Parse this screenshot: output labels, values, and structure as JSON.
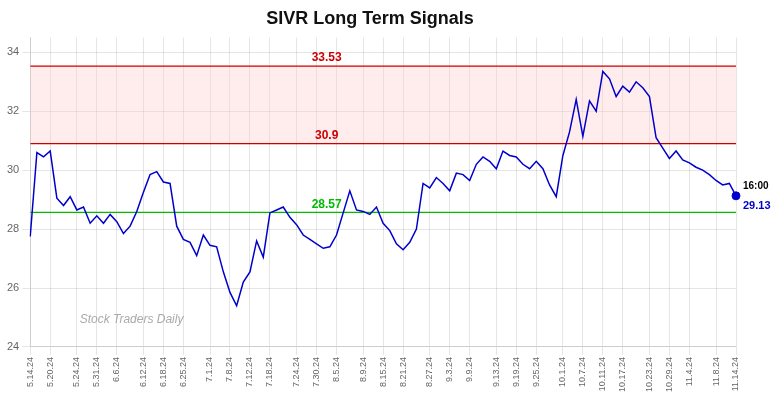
{
  "chart_data": {
    "type": "line",
    "title": "SIVR Long Term Signals",
    "watermark": "Stock Traders Daily",
    "color": "#0000cc",
    "categories": [
      "5.14.24",
      null,
      null,
      "5.20.24",
      null,
      null,
      null,
      "5.24.24",
      null,
      null,
      "5.31.24",
      null,
      null,
      "6.6.24",
      null,
      null,
      null,
      "6.12.24",
      null,
      null,
      "6.18.24",
      null,
      null,
      "6.25.24",
      null,
      null,
      null,
      "7.1.24",
      null,
      null,
      "7.8.24",
      null,
      null,
      "7.12.24",
      null,
      null,
      "7.18.24",
      null,
      null,
      null,
      "7.24.24",
      null,
      null,
      "7.30.24",
      null,
      null,
      "8.5.24",
      null,
      null,
      null,
      "8.9.24",
      null,
      null,
      "8.15.24",
      null,
      null,
      "8.21.24",
      null,
      null,
      null,
      "8.27.24",
      null,
      null,
      "9.3.24",
      null,
      null,
      "9.9.24",
      null,
      null,
      null,
      "9.13.24",
      null,
      null,
      "9.19.24",
      null,
      null,
      "9.25.24",
      null,
      null,
      null,
      "10.1.24",
      null,
      null,
      "10.7.24",
      null,
      null,
      "10.11.24",
      null,
      null,
      "10.17.24",
      null,
      null,
      null,
      "10.23.24",
      null,
      null,
      "10.29.24",
      null,
      null,
      "11.4.24",
      null,
      null,
      null,
      "11.8.24",
      null,
      null,
      "11.14.24"
    ],
    "values": [
      27.75,
      30.6,
      30.45,
      30.65,
      29.05,
      28.8,
      29.1,
      28.65,
      28.75,
      28.2,
      28.45,
      28.2,
      28.5,
      28.25,
      27.85,
      28.1,
      28.6,
      29.25,
      29.85,
      29.95,
      29.6,
      29.55,
      28.1,
      27.65,
      27.55,
      27.1,
      27.8,
      27.45,
      27.4,
      26.55,
      25.85,
      25.4,
      26.2,
      26.55,
      27.6,
      27.05,
      28.55,
      28.65,
      28.75,
      28.4,
      28.15,
      27.8,
      27.65,
      27.5,
      27.35,
      27.4,
      27.8,
      28.55,
      29.3,
      28.65,
      28.6,
      28.5,
      28.75,
      28.2,
      27.95,
      27.5,
      27.3,
      27.55,
      28.0,
      29.55,
      29.4,
      29.75,
      29.55,
      29.3,
      29.9,
      29.85,
      29.65,
      30.2,
      30.45,
      30.3,
      30.05,
      30.65,
      30.5,
      30.45,
      30.2,
      30.05,
      30.3,
      30.05,
      29.5,
      29.1,
      30.5,
      31.3,
      32.4,
      31.15,
      32.35,
      32.0,
      33.35,
      33.1,
      32.5,
      32.85,
      32.65,
      33.0,
      32.8,
      32.5,
      31.1,
      30.75,
      30.4,
      30.65,
      30.35,
      30.25,
      30.1,
      30.0,
      29.85,
      29.65,
      29.5,
      29.55,
      29.13
    ],
    "reference_lines": [
      {
        "y": 33.53,
        "label": "33.53",
        "color": "#cc0000"
      },
      {
        "y": 30.9,
        "label": "30.9",
        "color": "#cc0000"
      },
      {
        "y": 28.57,
        "label": "28.57",
        "color": "#00bb00"
      }
    ],
    "shaded_range": {
      "from": 30.9,
      "to": 33.53,
      "color": "#ffcccc"
    },
    "last_point": {
      "label": "16:00",
      "value": 29.13,
      "color": "#0000cc"
    },
    "ylim": [
      24,
      34.5
    ],
    "yticks": [
      24,
      26,
      28,
      30,
      32,
      34
    ],
    "grid": true
  }
}
